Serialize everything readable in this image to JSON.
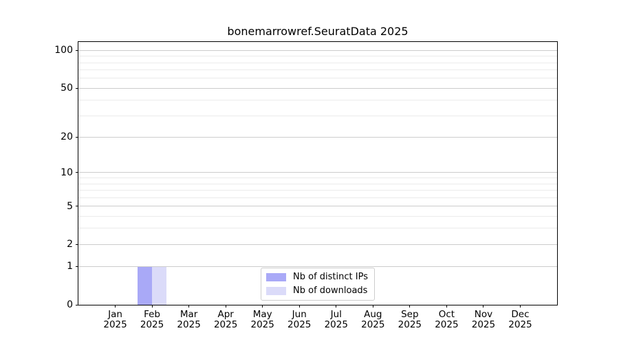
{
  "chart_data": {
    "type": "bar",
    "title": "bonemarrowref.SeuratData 2025",
    "categories": [
      {
        "month": "Jan",
        "year": "2025"
      },
      {
        "month": "Feb",
        "year": "2025"
      },
      {
        "month": "Mar",
        "year": "2025"
      },
      {
        "month": "Apr",
        "year": "2025"
      },
      {
        "month": "May",
        "year": "2025"
      },
      {
        "month": "Jun",
        "year": "2025"
      },
      {
        "month": "Jul",
        "year": "2025"
      },
      {
        "month": "Aug",
        "year": "2025"
      },
      {
        "month": "Sep",
        "year": "2025"
      },
      {
        "month": "Oct",
        "year": "2025"
      },
      {
        "month": "Nov",
        "year": "2025"
      },
      {
        "month": "Dec",
        "year": "2025"
      }
    ],
    "series": [
      {
        "name": "Nb of distinct IPs",
        "color": "#a9a9f7",
        "values": [
          0,
          1,
          0,
          0,
          0,
          0,
          0,
          0,
          0,
          0,
          0,
          0
        ]
      },
      {
        "name": "Nb of downloads",
        "color": "#dbdbf9",
        "values": [
          0,
          1,
          0,
          0,
          0,
          0,
          0,
          0,
          0,
          0,
          0,
          0
        ]
      }
    ],
    "xlabel": "",
    "ylabel": "",
    "y_scale": "log1p",
    "y_max": 117,
    "y_major_ticks": [
      0,
      1,
      2,
      5,
      10,
      20,
      50,
      100
    ],
    "y_minor_ticks": [
      3,
      4,
      6,
      7,
      8,
      9,
      30,
      40,
      60,
      70,
      80,
      90
    ],
    "grid": true,
    "legend_position": "bottom-center",
    "colors": {
      "major_grid": "#cccccc",
      "minor_grid": "#ebebeb",
      "spine": "#000000",
      "text": "#000000",
      "background": "#ffffff"
    }
  }
}
